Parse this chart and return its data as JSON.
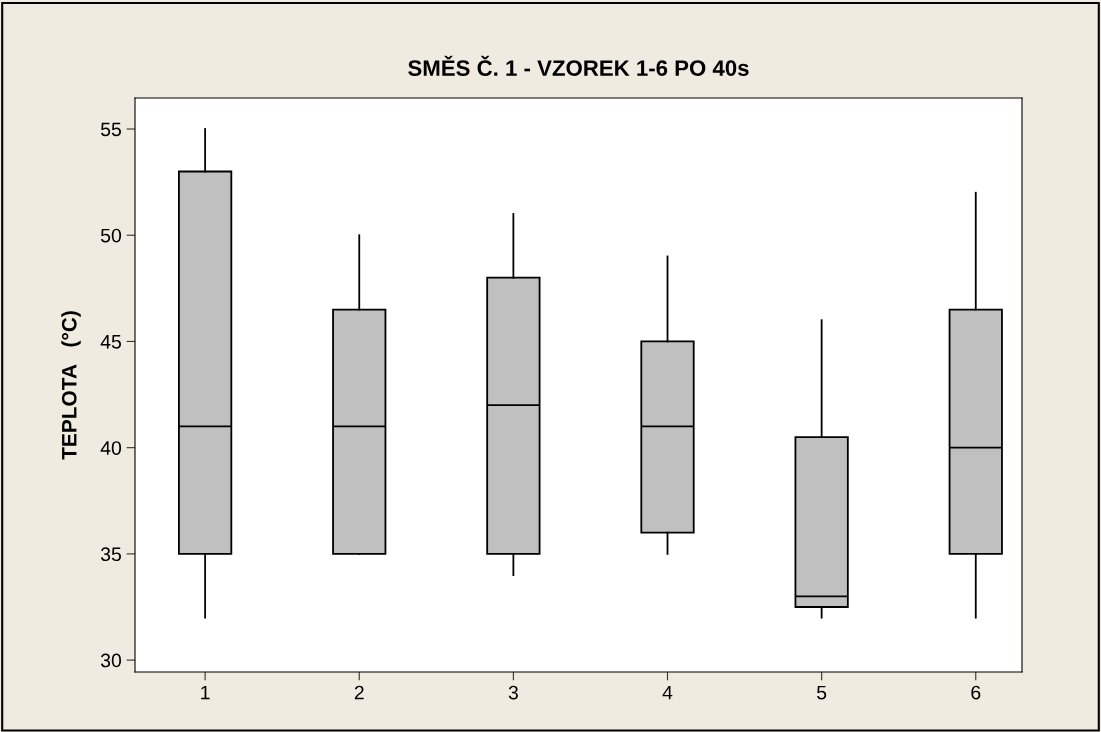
{
  "chart_data": {
    "type": "box",
    "title": "SMĚS Č. 1 - VZOREK 1-6 PO 40s",
    "ylabel": "TEPLOTA   (°C)",
    "categories": [
      "1",
      "2",
      "3",
      "4",
      "5",
      "6"
    ],
    "boxes": [
      {
        "low": 32,
        "q1": 35,
        "median": 41,
        "q3": 53,
        "high": 55
      },
      {
        "low": 35,
        "q1": 35,
        "median": 41,
        "q3": 46.5,
        "high": 50
      },
      {
        "low": 34,
        "q1": 35,
        "median": 42,
        "q3": 48,
        "high": 51
      },
      {
        "low": 35,
        "q1": 36,
        "median": 41,
        "q3": 45,
        "high": 49
      },
      {
        "low": 32,
        "q1": 32.5,
        "median": 33,
        "q3": 40.5,
        "high": 46
      },
      {
        "low": 32,
        "q1": 35,
        "median": 40,
        "q3": 46.5,
        "high": 52
      }
    ],
    "color": "#c0c0c0",
    "ylim": [
      29.44,
      56.46
    ],
    "yticks": [
      30,
      35,
      40,
      45,
      50,
      55
    ],
    "grid": false
  }
}
